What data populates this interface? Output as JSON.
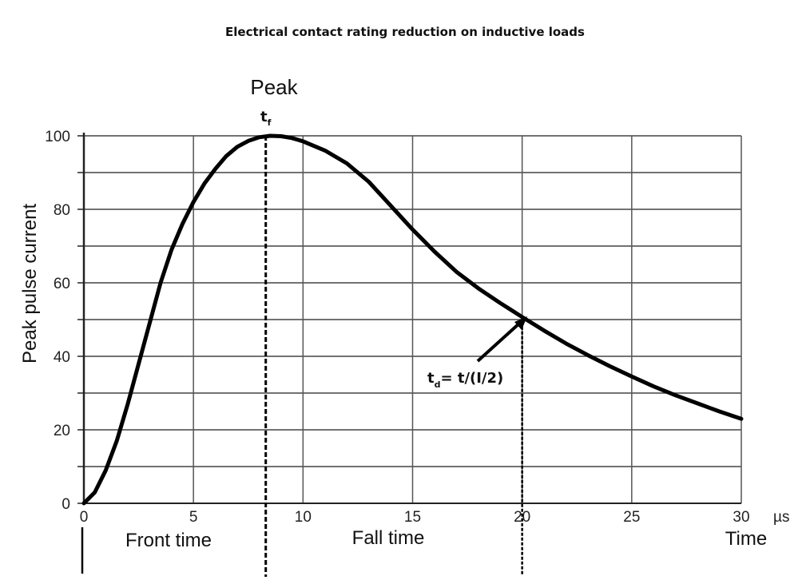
{
  "chart_data": {
    "type": "line",
    "title": "Electrical contact rating reduction on inductive loads",
    "ylabel": "Peak pulse current",
    "xlabel": "Time",
    "x_unit": "µs",
    "xlim": [
      0,
      30
    ],
    "ylim": [
      0,
      100
    ],
    "x_ticks": [
      "0",
      "5",
      "10",
      "15",
      "20",
      "25",
      "30"
    ],
    "y_ticks": [
      "0",
      "20",
      "40",
      "60",
      "80",
      "100"
    ],
    "grid": true,
    "series": [
      {
        "x": [
          0,
          0.5,
          1,
          1.5,
          2,
          2.5,
          3,
          3.5,
          4,
          4.5,
          5,
          5.5,
          6,
          6.5,
          7,
          7.5,
          8,
          8.5,
          9,
          9.5,
          10,
          11,
          12,
          13,
          14,
          15,
          16,
          17,
          18,
          19,
          20,
          21,
          22,
          23,
          24,
          25,
          26,
          27,
          28,
          29,
          30
        ],
        "y": [
          0,
          3,
          9,
          17,
          27,
          38,
          49,
          60,
          69,
          76,
          82,
          87,
          91,
          94.5,
          97,
          98.6,
          99.6,
          100,
          99.9,
          99.4,
          98.5,
          96,
          92.5,
          87.5,
          81,
          74.5,
          68.5,
          63,
          58.5,
          54.5,
          50.7,
          47,
          43.5,
          40.3,
          37.3,
          34.5,
          31.8,
          29.4,
          27.2,
          25,
          23
        ]
      }
    ],
    "annotations": {
      "peak": "Peak",
      "peak_time": "t",
      "peak_time_sub": "f",
      "peak_x": 8.3,
      "halfvalue_label": "t",
      "halfvalue_sub": "d",
      "halfvalue_formula": "= t/(I/2)",
      "halfvalue_x": 20,
      "halfvalue_y": 50.7,
      "front_time": "Front time",
      "fall_time": "Fall time"
    }
  }
}
